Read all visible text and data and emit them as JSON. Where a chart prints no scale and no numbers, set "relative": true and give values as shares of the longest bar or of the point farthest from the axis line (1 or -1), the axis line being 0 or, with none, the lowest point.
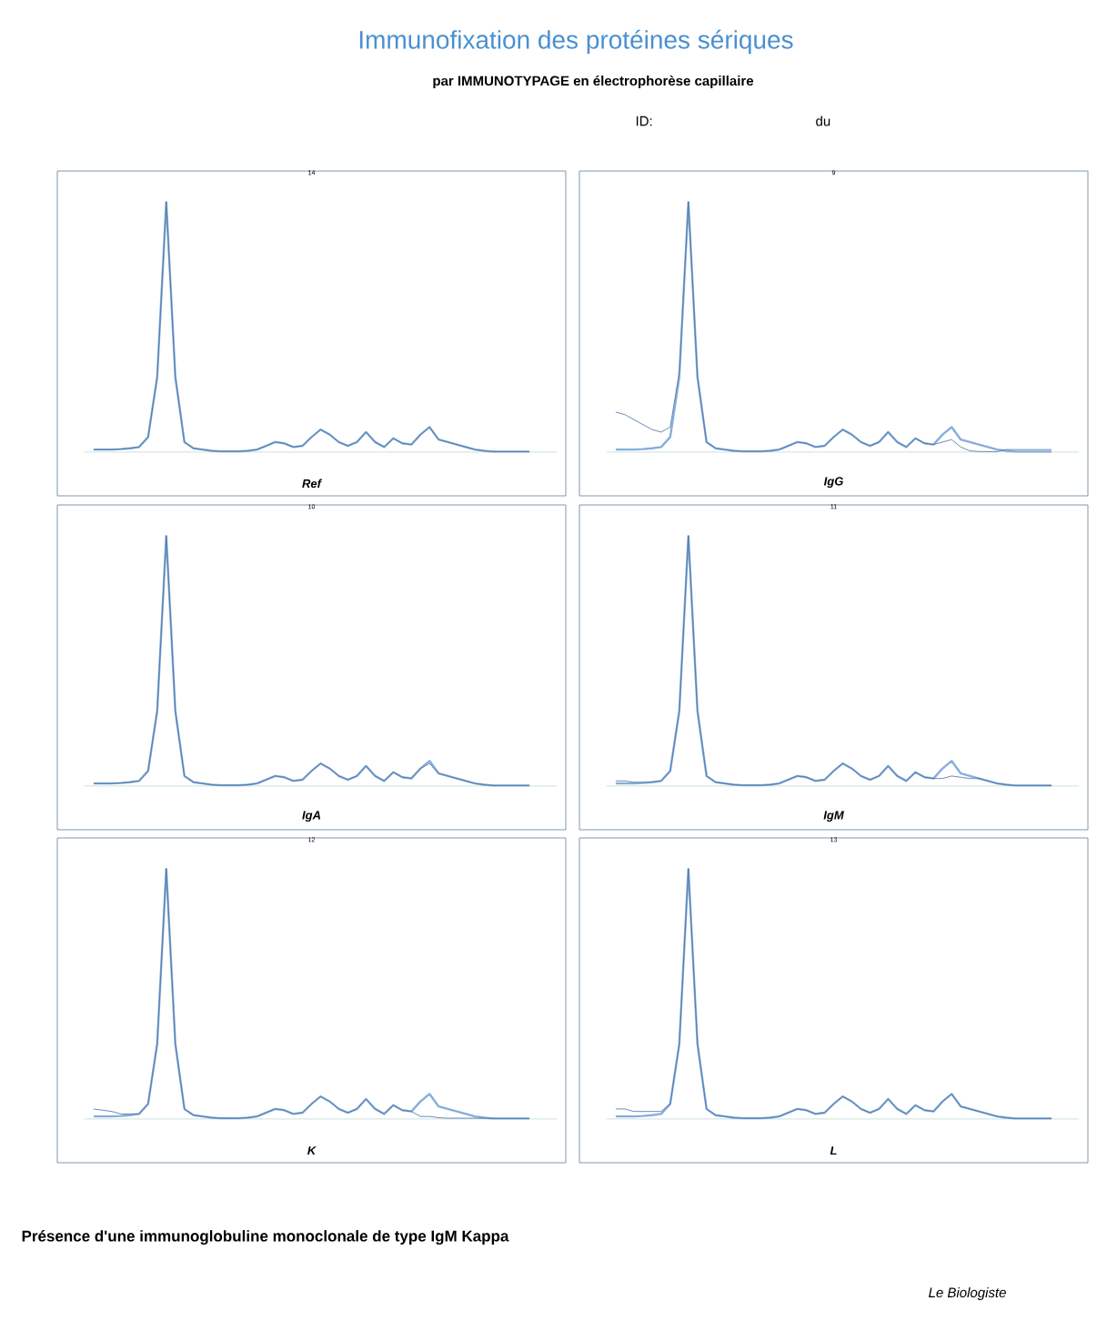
{
  "chart_data": [
    {
      "type": "other",
      "title": "Immunofixation des protéines sériques",
      "subtitle": "par IMMUNOTYPAGE en électrophorèse capillaire",
      "annotations": [
        "ID:",
        "du"
      ]
    },
    {
      "type": "line",
      "relative": true,
      "title": "14",
      "xlabel": "Ref",
      "categories": [
        null,
        null,
        null,
        null,
        null,
        null,
        null,
        null,
        null,
        null,
        null,
        null,
        null,
        null,
        null,
        null,
        null,
        null,
        null,
        null,
        null,
        null,
        null,
        null,
        null,
        null,
        null,
        null,
        null,
        null,
        null,
        null,
        null,
        null,
        null,
        null,
        null,
        null,
        null,
        null,
        null,
        null,
        null,
        null,
        null,
        null,
        null,
        null,
        null
      ],
      "series": [
        {
          "color": "#86aedb",
          "values": [
            0.01,
            0.01,
            0.01,
            0.012,
            0.015,
            0.02,
            0.06,
            0.3,
            1.0,
            0.3,
            0.04,
            0.015,
            0.01,
            0.005,
            0.003,
            0.003,
            0.003,
            0.005,
            0.01,
            0.025,
            0.04,
            0.035,
            0.02,
            0.025,
            0.06,
            0.09,
            0.07,
            0.04,
            0.025,
            0.04,
            0.08,
            0.04,
            0.02,
            0.055,
            0.035,
            0.03,
            0.07,
            0.1,
            0.05,
            0.04,
            0.03,
            0.02,
            0.01,
            0.005,
            0.002,
            0.002,
            0.002,
            0.002,
            0.002
          ]
        },
        {
          "color": "#4a6f9c",
          "values": [
            0.01,
            0.01,
            0.01,
            0.012,
            0.015,
            0.02,
            0.06,
            0.3,
            1.0,
            0.3,
            0.04,
            0.015,
            0.01,
            0.005,
            0.003,
            0.003,
            0.003,
            0.005,
            0.01,
            0.025,
            0.04,
            0.035,
            0.02,
            0.025,
            0.06,
            0.09,
            0.07,
            0.04,
            0.025,
            0.04,
            0.08,
            0.04,
            0.02,
            0.055,
            0.035,
            0.03,
            0.07,
            0.1,
            0.05,
            0.04,
            0.03,
            0.02,
            0.01,
            0.005,
            0.002,
            0.002,
            0.002,
            0.002,
            0.002
          ]
        }
      ]
    },
    {
      "type": "line",
      "relative": true,
      "title": "9",
      "xlabel": "IgG",
      "categories": [
        null,
        null,
        null,
        null,
        null,
        null,
        null,
        null,
        null,
        null,
        null,
        null,
        null,
        null,
        null,
        null,
        null,
        null,
        null,
        null,
        null,
        null,
        null,
        null,
        null,
        null,
        null,
        null,
        null,
        null,
        null,
        null,
        null,
        null,
        null,
        null,
        null,
        null,
        null,
        null,
        null,
        null,
        null,
        null,
        null,
        null,
        null,
        null,
        null
      ],
      "series": [
        {
          "color": "#86aedb",
          "values": [
            0.01,
            0.01,
            0.01,
            0.012,
            0.015,
            0.02,
            0.06,
            0.3,
            1.0,
            0.3,
            0.04,
            0.015,
            0.01,
            0.005,
            0.003,
            0.003,
            0.003,
            0.005,
            0.01,
            0.025,
            0.04,
            0.035,
            0.02,
            0.025,
            0.06,
            0.09,
            0.07,
            0.04,
            0.025,
            0.04,
            0.08,
            0.04,
            0.02,
            0.055,
            0.035,
            0.03,
            0.07,
            0.1,
            0.05,
            0.04,
            0.03,
            0.02,
            0.01,
            0.005,
            0.002,
            0.002,
            0.002,
            0.002,
            0.002
          ]
        },
        {
          "color": "#4a6f9c",
          "values": [
            0.16,
            0.15,
            0.13,
            0.11,
            0.09,
            0.08,
            0.1,
            0.32,
            1.0,
            0.3,
            0.04,
            0.015,
            0.01,
            0.005,
            0.003,
            0.003,
            0.003,
            0.005,
            0.01,
            0.025,
            0.04,
            0.035,
            0.02,
            0.025,
            0.06,
            0.09,
            0.07,
            0.04,
            0.025,
            0.04,
            0.08,
            0.04,
            0.02,
            0.055,
            0.035,
            0.03,
            0.04,
            0.05,
            0.02,
            0.005,
            0.002,
            0.002,
            0.002,
            0.01,
            0.01,
            0.01,
            0.01,
            0.01,
            0.01
          ]
        }
      ]
    },
    {
      "type": "line",
      "relative": true,
      "title": "10",
      "xlabel": "IgA",
      "categories": [
        null,
        null,
        null,
        null,
        null,
        null,
        null,
        null,
        null,
        null,
        null,
        null,
        null,
        null,
        null,
        null,
        null,
        null,
        null,
        null,
        null,
        null,
        null,
        null,
        null,
        null,
        null,
        null,
        null,
        null,
        null,
        null,
        null,
        null,
        null,
        null,
        null,
        null,
        null,
        null,
        null,
        null,
        null,
        null,
        null,
        null,
        null,
        null,
        null
      ],
      "series": [
        {
          "color": "#86aedb",
          "values": [
            0.01,
            0.01,
            0.01,
            0.012,
            0.015,
            0.02,
            0.06,
            0.3,
            1.0,
            0.3,
            0.04,
            0.015,
            0.01,
            0.005,
            0.003,
            0.003,
            0.003,
            0.005,
            0.01,
            0.025,
            0.04,
            0.035,
            0.02,
            0.025,
            0.06,
            0.09,
            0.07,
            0.04,
            0.025,
            0.04,
            0.08,
            0.04,
            0.02,
            0.055,
            0.035,
            0.03,
            0.07,
            0.1,
            0.05,
            0.04,
            0.03,
            0.02,
            0.01,
            0.005,
            0.002,
            0.002,
            0.002,
            0.002,
            0.002
          ]
        },
        {
          "color": "#4a6f9c",
          "values": [
            0.01,
            0.01,
            0.01,
            0.012,
            0.015,
            0.02,
            0.06,
            0.3,
            1.0,
            0.3,
            0.04,
            0.015,
            0.01,
            0.005,
            0.003,
            0.003,
            0.003,
            0.005,
            0.01,
            0.025,
            0.04,
            0.035,
            0.02,
            0.025,
            0.06,
            0.09,
            0.07,
            0.04,
            0.025,
            0.04,
            0.08,
            0.04,
            0.02,
            0.055,
            0.035,
            0.03,
            0.07,
            0.09,
            0.05,
            0.04,
            0.03,
            0.02,
            0.01,
            0.005,
            0.002,
            0.002,
            0.002,
            0.002,
            0.002
          ]
        }
      ]
    },
    {
      "type": "line",
      "relative": true,
      "title": "11",
      "xlabel": "IgM",
      "categories": [
        null,
        null,
        null,
        null,
        null,
        null,
        null,
        null,
        null,
        null,
        null,
        null,
        null,
        null,
        null,
        null,
        null,
        null,
        null,
        null,
        null,
        null,
        null,
        null,
        null,
        null,
        null,
        null,
        null,
        null,
        null,
        null,
        null,
        null,
        null,
        null,
        null,
        null,
        null,
        null,
        null,
        null,
        null,
        null,
        null,
        null,
        null,
        null,
        null
      ],
      "series": [
        {
          "color": "#86aedb",
          "values": [
            0.01,
            0.01,
            0.01,
            0.012,
            0.015,
            0.02,
            0.06,
            0.3,
            1.0,
            0.3,
            0.04,
            0.015,
            0.01,
            0.005,
            0.003,
            0.003,
            0.003,
            0.005,
            0.01,
            0.025,
            0.04,
            0.035,
            0.02,
            0.025,
            0.06,
            0.09,
            0.07,
            0.04,
            0.025,
            0.04,
            0.08,
            0.04,
            0.02,
            0.055,
            0.035,
            0.03,
            0.07,
            0.1,
            0.05,
            0.04,
            0.03,
            0.02,
            0.01,
            0.005,
            0.002,
            0.002,
            0.002,
            0.002,
            0.002
          ]
        },
        {
          "color": "#4a6f9c",
          "values": [
            0.02,
            0.02,
            0.015,
            0.015,
            0.015,
            0.02,
            0.06,
            0.3,
            1.0,
            0.3,
            0.04,
            0.015,
            0.01,
            0.005,
            0.003,
            0.003,
            0.003,
            0.005,
            0.01,
            0.025,
            0.04,
            0.035,
            0.02,
            0.025,
            0.06,
            0.09,
            0.07,
            0.04,
            0.025,
            0.04,
            0.08,
            0.04,
            0.02,
            0.055,
            0.035,
            0.03,
            0.03,
            0.04,
            0.035,
            0.03,
            0.03,
            0.02,
            0.01,
            0.005,
            0.002,
            0.002,
            0.002,
            0.002,
            0.002
          ]
        }
      ]
    },
    {
      "type": "line",
      "relative": true,
      "title": "12",
      "xlabel": "K",
      "categories": [
        null,
        null,
        null,
        null,
        null,
        null,
        null,
        null,
        null,
        null,
        null,
        null,
        null,
        null,
        null,
        null,
        null,
        null,
        null,
        null,
        null,
        null,
        null,
        null,
        null,
        null,
        null,
        null,
        null,
        null,
        null,
        null,
        null,
        null,
        null,
        null,
        null,
        null,
        null,
        null,
        null,
        null,
        null,
        null,
        null,
        null,
        null,
        null,
        null
      ],
      "series": [
        {
          "color": "#86aedb",
          "values": [
            0.01,
            0.01,
            0.01,
            0.012,
            0.015,
            0.02,
            0.06,
            0.3,
            1.0,
            0.3,
            0.04,
            0.015,
            0.01,
            0.005,
            0.003,
            0.003,
            0.003,
            0.005,
            0.01,
            0.025,
            0.04,
            0.035,
            0.02,
            0.025,
            0.06,
            0.09,
            0.07,
            0.04,
            0.025,
            0.04,
            0.08,
            0.04,
            0.02,
            0.055,
            0.035,
            0.03,
            0.07,
            0.1,
            0.05,
            0.04,
            0.03,
            0.02,
            0.01,
            0.005,
            0.002,
            0.002,
            0.002,
            0.002,
            0.002
          ]
        },
        {
          "color": "#4a6f9c",
          "values": [
            0.04,
            0.035,
            0.03,
            0.02,
            0.02,
            0.02,
            0.06,
            0.3,
            1.0,
            0.3,
            0.04,
            0.015,
            0.01,
            0.005,
            0.003,
            0.003,
            0.003,
            0.005,
            0.01,
            0.025,
            0.04,
            0.035,
            0.02,
            0.025,
            0.06,
            0.09,
            0.07,
            0.04,
            0.025,
            0.04,
            0.08,
            0.04,
            0.02,
            0.055,
            0.035,
            0.03,
            0.01,
            0.01,
            0.005,
            0.003,
            0.003,
            0.003,
            0.003,
            0.003,
            0.002,
            0.002,
            0.002,
            0.002,
            0.002
          ]
        }
      ]
    },
    {
      "type": "line",
      "relative": true,
      "title": "13",
      "xlabel": "L",
      "categories": [
        null,
        null,
        null,
        null,
        null,
        null,
        null,
        null,
        null,
        null,
        null,
        null,
        null,
        null,
        null,
        null,
        null,
        null,
        null,
        null,
        null,
        null,
        null,
        null,
        null,
        null,
        null,
        null,
        null,
        null,
        null,
        null,
        null,
        null,
        null,
        null,
        null,
        null,
        null,
        null,
        null,
        null,
        null,
        null,
        null,
        null,
        null,
        null,
        null
      ],
      "series": [
        {
          "color": "#86aedb",
          "values": [
            0.01,
            0.01,
            0.01,
            0.012,
            0.015,
            0.02,
            0.06,
            0.3,
            1.0,
            0.3,
            0.04,
            0.015,
            0.01,
            0.005,
            0.003,
            0.003,
            0.003,
            0.005,
            0.01,
            0.025,
            0.04,
            0.035,
            0.02,
            0.025,
            0.06,
            0.09,
            0.07,
            0.04,
            0.025,
            0.04,
            0.08,
            0.04,
            0.02,
            0.055,
            0.035,
            0.03,
            0.07,
            0.1,
            0.05,
            0.04,
            0.03,
            0.02,
            0.01,
            0.005,
            0.002,
            0.002,
            0.002,
            0.002,
            0.002
          ]
        },
        {
          "color": "#4a6f9c",
          "values": [
            0.04,
            0.04,
            0.03,
            0.03,
            0.03,
            0.03,
            0.06,
            0.3,
            1.0,
            0.3,
            0.04,
            0.015,
            0.01,
            0.005,
            0.003,
            0.003,
            0.003,
            0.005,
            0.01,
            0.025,
            0.04,
            0.035,
            0.02,
            0.025,
            0.06,
            0.09,
            0.07,
            0.04,
            0.025,
            0.04,
            0.08,
            0.04,
            0.02,
            0.055,
            0.035,
            0.03,
            0.07,
            0.1,
            0.05,
            0.04,
            0.03,
            0.02,
            0.01,
            0.005,
            0.002,
            0.002,
            0.002,
            0.002,
            0.002
          ]
        }
      ]
    },
    {
      "type": "other",
      "annotations": [
        "Présence d'une immunoglobuline monoclonale de type IgM Kappa",
        "Le Biologiste"
      ]
    }
  ]
}
